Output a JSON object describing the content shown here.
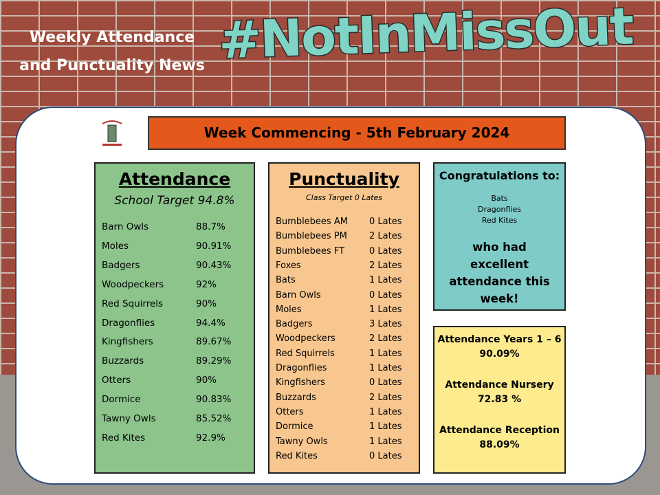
{
  "header": {
    "title_lines": [
      "Weekly Attendance",
      "and Punctuality News"
    ],
    "hashtag": "#NotInMissOut"
  },
  "week": "Week Commencing - 5th February 2024",
  "attendance": {
    "title": "Attendance",
    "target": "School Target 94.8%",
    "rows": [
      [
        "Barn Owls",
        "88.7%"
      ],
      [
        "Moles",
        "90.91%"
      ],
      [
        "Badgers",
        "90.43%"
      ],
      [
        "Woodpeckers",
        "92%"
      ],
      [
        "Red Squirrels",
        "90%"
      ],
      [
        "Dragonflies",
        "94.4%"
      ],
      [
        "Kingfishers",
        "89.67%"
      ],
      [
        "Buzzards",
        "89.29%"
      ],
      [
        "Otters",
        "90%"
      ],
      [
        "Dormice",
        "90.83%"
      ],
      [
        "Tawny Owls",
        "85.52%"
      ],
      [
        "Red Kites",
        "92.9%"
      ]
    ]
  },
  "punctuality": {
    "title": "Punctuality",
    "target": "Class Target 0 Lates",
    "rows": [
      [
        "Bumblebees AM",
        "0 Lates"
      ],
      [
        "Bumblebees PM",
        "2 Lates"
      ],
      [
        "Bumblebees FT",
        "0 Lates"
      ],
      [
        "Foxes",
        "2 Lates"
      ],
      [
        "Bats",
        "1 Lates"
      ],
      [
        "Barn Owls",
        "0 Lates"
      ],
      [
        "Moles",
        "1 Lates"
      ],
      [
        "Badgers",
        "3 Lates"
      ],
      [
        "Woodpeckers",
        "2 Lates"
      ],
      [
        "Red Squirrels",
        "1 Lates"
      ],
      [
        "Dragonflies",
        "1 Lates"
      ],
      [
        "Kingfishers",
        "0 Lates"
      ],
      [
        "Buzzards",
        "2 Lates"
      ],
      [
        "Otters",
        "1 Lates"
      ],
      [
        "Dormice",
        "1 Lates"
      ],
      [
        "Tawny Owls",
        "1 Lates"
      ],
      [
        "Red Kites",
        "0 Lates"
      ]
    ]
  },
  "congratulations": {
    "title": "Congratulations to:",
    "names": [
      "Bats",
      "Dragonflies",
      "Red Kites"
    ],
    "message": "who had excellent attendance this week!"
  },
  "summary": [
    {
      "label": "Attendance Years 1 – 6",
      "value": "90.09%"
    },
    {
      "label": "Attendance Nursery",
      "value": "72.83 %"
    },
    {
      "label": "Attendance Reception",
      "value": "88.09%"
    }
  ]
}
